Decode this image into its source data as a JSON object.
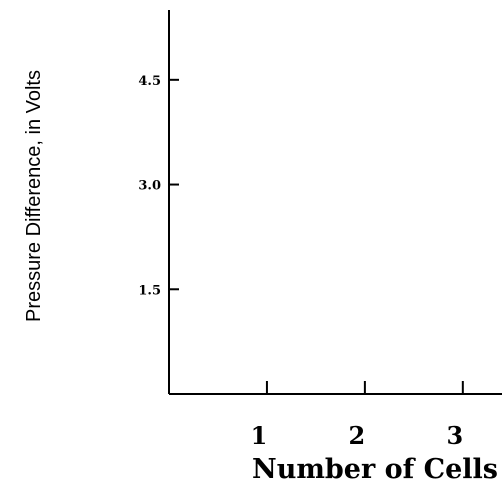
{
  "chart_data": {
    "type": "line",
    "title": "",
    "xlabel": "Number of Cells",
    "ylabel": "Pressure Difference, in Volts",
    "x_ticks": [
      1,
      2,
      3
    ],
    "x_tick_labels": [
      "1",
      "2",
      "3"
    ],
    "y_ticks": [
      1.5,
      3.0,
      4.5
    ],
    "y_tick_labels": [
      "1.5",
      "3.0",
      "4.5"
    ],
    "xlim": [
      0,
      3.4
    ],
    "ylim": [
      0,
      5.5
    ],
    "series": [],
    "grid": false,
    "legend": "none",
    "colors": {
      "axis": "#000000",
      "background": "#ffffff"
    }
  }
}
